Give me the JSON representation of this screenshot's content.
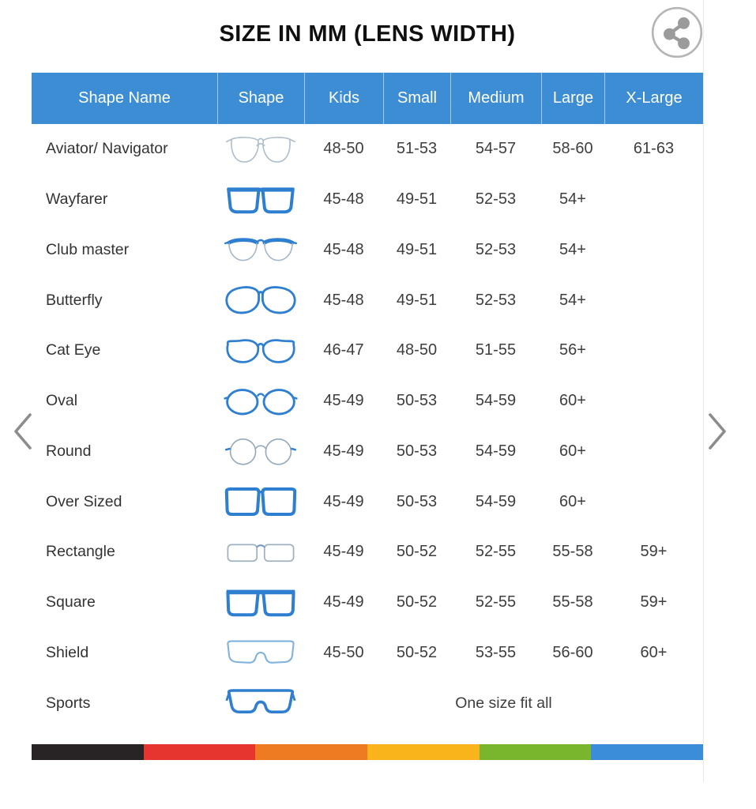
{
  "page_title": "SIZE IN MM (LENS WIDTH)",
  "controls": {
    "share_icon": "share-icon",
    "prev_icon": "chevron-left-icon",
    "next_icon": "chevron-right-icon"
  },
  "colors": {
    "header_bg": "#3d8dd4",
    "header_text": "#ffffff",
    "body_text": "#3e3e3e",
    "title_text": "#101010",
    "frame_blue": "#2e7fd0",
    "frame_light": "#a5b8c7",
    "chevron_gray": "#8c8c8c",
    "share_gray": "#9b9b9b"
  },
  "stripe_colors": [
    "#282425",
    "#e6342e",
    "#ee7b21",
    "#f9b31b",
    "#79b62d",
    "#3b8cd9"
  ],
  "chart_data": {
    "type": "table",
    "title": "SIZE IN MM (LENS WIDTH)",
    "columns": [
      "Shape Name",
      "Shape",
      "Kids",
      "Small",
      "Medium",
      "Large",
      "X-Large"
    ],
    "rows": [
      {
        "name": "Aviator/ Navigator",
        "icon": "aviator",
        "sizes": [
          "48-50",
          "51-53",
          "54-57",
          "58-60",
          "61-63"
        ]
      },
      {
        "name": "Wayfarer",
        "icon": "wayfarer",
        "sizes": [
          "45-48",
          "49-51",
          "52-53",
          "54+",
          ""
        ]
      },
      {
        "name": "Club master",
        "icon": "clubmaster",
        "sizes": [
          "45-48",
          "49-51",
          "52-53",
          "54+",
          ""
        ]
      },
      {
        "name": "Butterfly",
        "icon": "butterfly",
        "sizes": [
          "45-48",
          "49-51",
          "52-53",
          "54+",
          ""
        ]
      },
      {
        "name": "Cat Eye",
        "icon": "cateye",
        "sizes": [
          "46-47",
          "48-50",
          "51-55",
          "56+",
          ""
        ]
      },
      {
        "name": "Oval",
        "icon": "oval",
        "sizes": [
          "45-49",
          "50-53",
          "54-59",
          "60+",
          ""
        ]
      },
      {
        "name": "Round",
        "icon": "round",
        "sizes": [
          "45-49",
          "50-53",
          "54-59",
          "60+",
          ""
        ]
      },
      {
        "name": "Over Sized",
        "icon": "oversized",
        "sizes": [
          "45-49",
          "50-53",
          "54-59",
          "60+",
          ""
        ]
      },
      {
        "name": "Rectangle",
        "icon": "rectangle",
        "sizes": [
          "45-49",
          "50-52",
          "52-55",
          "55-58",
          "59+"
        ]
      },
      {
        "name": "Square",
        "icon": "square",
        "sizes": [
          "45-49",
          "50-52",
          "52-55",
          "55-58",
          "59+"
        ]
      },
      {
        "name": "Shield",
        "icon": "shield",
        "sizes": [
          "45-50",
          "50-52",
          "53-55",
          "56-60",
          "60+"
        ]
      },
      {
        "name": "Sports",
        "icon": "sports",
        "note": "One size fit all"
      }
    ]
  }
}
